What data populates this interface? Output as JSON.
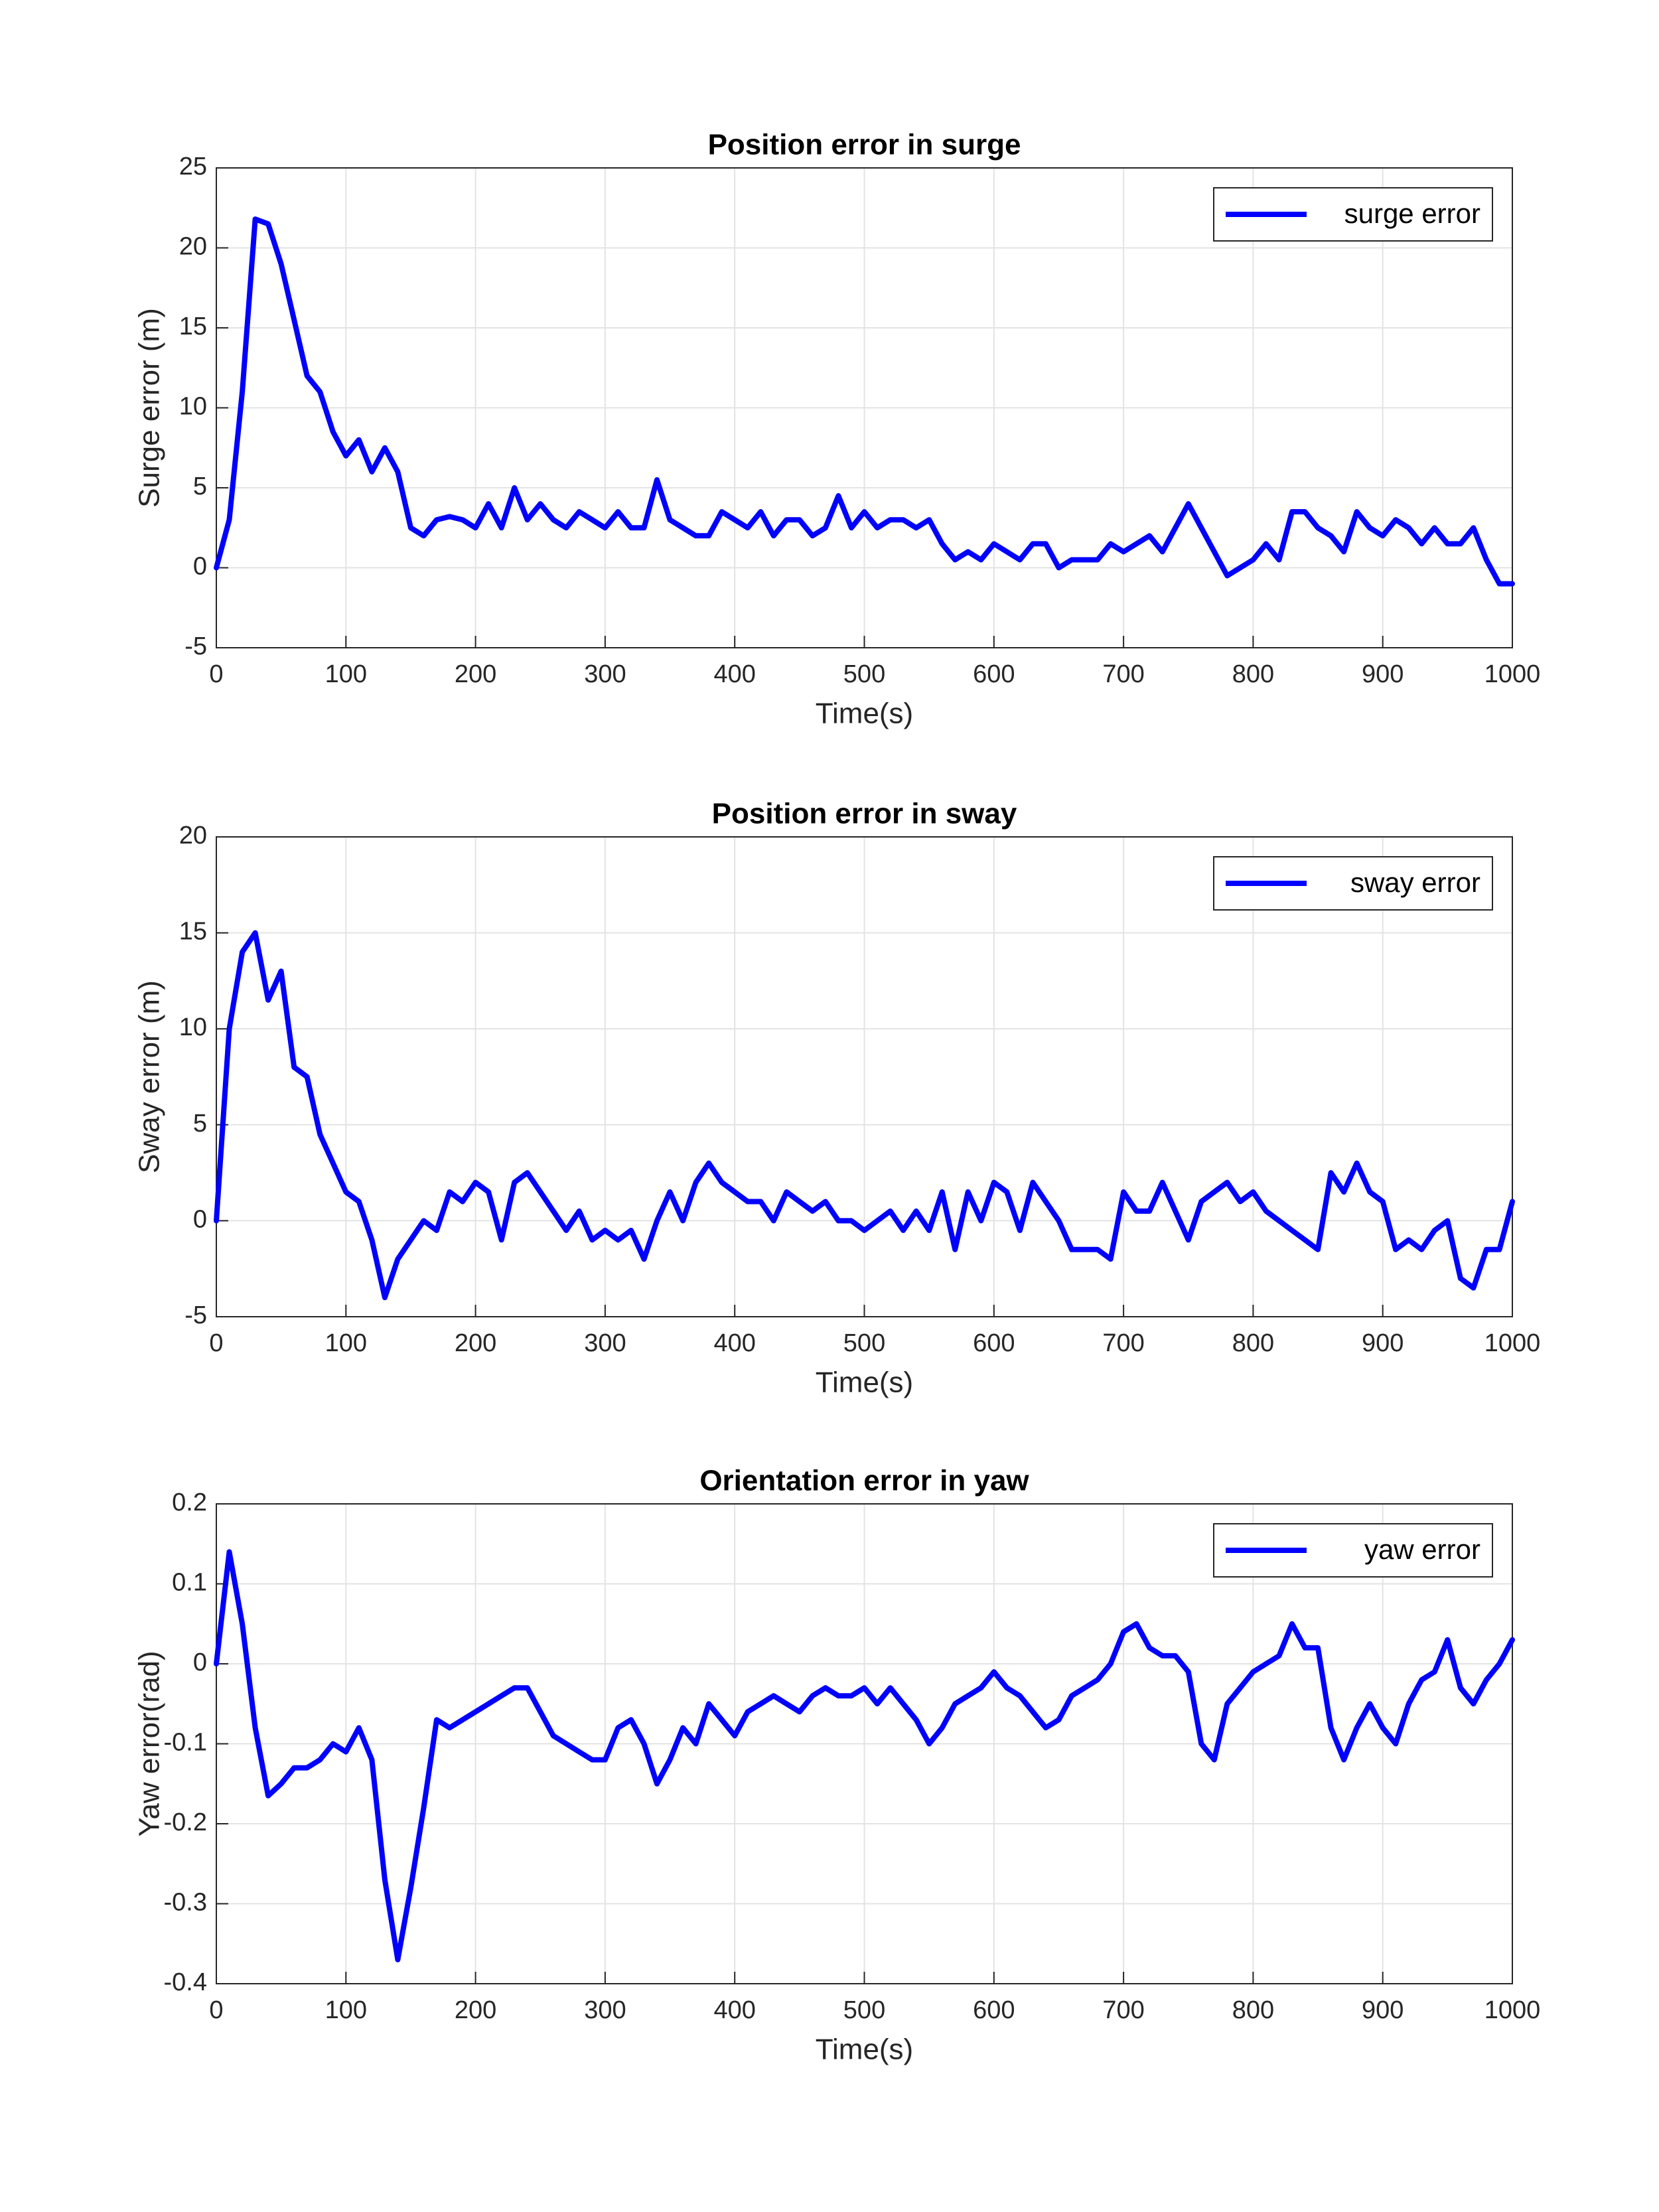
{
  "chart_data": [
    {
      "type": "line",
      "title": "Position error in surge",
      "xlabel": "Time(s)",
      "ylabel": "Surge error (m)",
      "x": [
        0,
        10,
        20,
        30,
        40,
        50,
        60,
        70,
        80,
        90,
        100,
        110,
        120,
        130,
        140,
        150,
        160,
        170,
        180,
        190,
        200,
        210,
        220,
        230,
        240,
        250,
        260,
        270,
        280,
        290,
        300,
        310,
        320,
        330,
        340,
        350,
        360,
        370,
        380,
        390,
        400,
        410,
        420,
        430,
        440,
        450,
        460,
        470,
        480,
        490,
        500,
        510,
        520,
        530,
        540,
        550,
        560,
        570,
        580,
        590,
        600,
        610,
        620,
        630,
        640,
        650,
        660,
        670,
        680,
        690,
        700,
        710,
        720,
        730,
        740,
        750,
        760,
        770,
        780,
        790,
        800,
        810,
        820,
        830,
        840,
        850,
        860,
        870,
        880,
        890,
        900,
        910,
        920,
        930,
        940,
        950,
        960,
        970,
        980,
        990,
        1000
      ],
      "series": [
        {
          "name": "surge error",
          "color": "#0000ff",
          "values": [
            0,
            3,
            11,
            21.8,
            21.5,
            19,
            15.5,
            12,
            11,
            8.5,
            7,
            8,
            6,
            7.5,
            6,
            2.5,
            2,
            3,
            3.2,
            3,
            2.5,
            4,
            2.5,
            5,
            3,
            4,
            3,
            2.5,
            3.5,
            3,
            2.5,
            3.5,
            2.5,
            2.5,
            5.5,
            3,
            2.5,
            2,
            2,
            3.5,
            3,
            2.5,
            3.5,
            2,
            3,
            3,
            2,
            2.5,
            4.5,
            2.5,
            3.5,
            2.5,
            3,
            3,
            2.5,
            3,
            1.5,
            0.5,
            1,
            0.5,
            1.5,
            1,
            0.5,
            1.5,
            1.5,
            0,
            0.5,
            0.5,
            0.5,
            1.5,
            1,
            1.5,
            2,
            1,
            2.5,
            4,
            2.5,
            1,
            -0.5,
            0,
            0.5,
            1.5,
            0.5,
            3.5,
            3.5,
            2.5,
            2,
            1,
            3.5,
            2.5,
            2,
            3,
            2.5,
            1.5,
            2.5,
            1.5,
            1.5,
            2.5,
            0.5,
            -1,
            -1
          ]
        }
      ],
      "xlim": [
        0,
        1000
      ],
      "xticks": [
        0,
        100,
        200,
        300,
        400,
        500,
        600,
        700,
        800,
        900,
        1000
      ],
      "ylim": [
        -5,
        25
      ],
      "yticks": [
        -5,
        0,
        5,
        10,
        15,
        20,
        25
      ],
      "grid": true,
      "legend": "upper right"
    },
    {
      "type": "line",
      "title": "Position error in sway",
      "xlabel": "Time(s)",
      "ylabel": "Sway error (m)",
      "x": [
        0,
        10,
        20,
        30,
        40,
        50,
        60,
        70,
        80,
        90,
        100,
        110,
        120,
        130,
        140,
        150,
        160,
        170,
        180,
        190,
        200,
        210,
        220,
        230,
        240,
        250,
        260,
        270,
        280,
        290,
        300,
        310,
        320,
        330,
        340,
        350,
        360,
        370,
        380,
        390,
        400,
        410,
        420,
        430,
        440,
        450,
        460,
        470,
        480,
        490,
        500,
        510,
        520,
        530,
        540,
        550,
        560,
        570,
        580,
        590,
        600,
        610,
        620,
        630,
        640,
        650,
        660,
        670,
        680,
        690,
        700,
        710,
        720,
        730,
        740,
        750,
        760,
        770,
        780,
        790,
        800,
        810,
        820,
        830,
        840,
        850,
        860,
        870,
        880,
        890,
        900,
        910,
        920,
        930,
        940,
        950,
        960,
        970,
        980,
        990,
        1000
      ],
      "series": [
        {
          "name": "sway error",
          "color": "#0000ff",
          "values": [
            0,
            10,
            14,
            15,
            11.5,
            13,
            8,
            7.5,
            4.5,
            3,
            1.5,
            1,
            -1,
            -4,
            -2,
            -1,
            0,
            -0.5,
            1.5,
            1,
            2,
            1.5,
            -1,
            2,
            2.5,
            1.5,
            0.5,
            -0.5,
            0.5,
            -1,
            -0.5,
            -1,
            -0.5,
            -2,
            0,
            1.5,
            0,
            2,
            3,
            2,
            1.5,
            1,
            1,
            0,
            1.5,
            1,
            0.5,
            1,
            0,
            0,
            -0.5,
            0,
            0.5,
            -0.5,
            0.5,
            -0.5,
            1.5,
            -1.5,
            1.5,
            0,
            2,
            1.5,
            -0.5,
            2,
            1,
            0,
            -1.5,
            -1.5,
            -1.5,
            -2,
            1.5,
            0.5,
            0.5,
            2,
            0.5,
            -1,
            1,
            1.5,
            2,
            1,
            1.5,
            0.5,
            0,
            -0.5,
            -1,
            -1.5,
            2.5,
            1.5,
            3,
            1.5,
            1,
            -1.5,
            -1,
            -1.5,
            -0.5,
            0,
            -3,
            -3.5,
            -1.5,
            -1.5,
            1
          ]
        }
      ],
      "xlim": [
        0,
        1000
      ],
      "xticks": [
        0,
        100,
        200,
        300,
        400,
        500,
        600,
        700,
        800,
        900,
        1000
      ],
      "ylim": [
        -5,
        20
      ],
      "yticks": [
        -5,
        0,
        5,
        10,
        15,
        20
      ],
      "grid": true,
      "legend": "upper right"
    },
    {
      "type": "line",
      "title": "Orientation error in yaw",
      "xlabel": "Time(s)",
      "ylabel": "Yaw error(rad)",
      "x": [
        0,
        10,
        20,
        30,
        40,
        50,
        60,
        70,
        80,
        90,
        100,
        110,
        120,
        130,
        140,
        150,
        160,
        170,
        180,
        190,
        200,
        210,
        220,
        230,
        240,
        250,
        260,
        270,
        280,
        290,
        300,
        310,
        320,
        330,
        340,
        350,
        360,
        370,
        380,
        390,
        400,
        410,
        420,
        430,
        440,
        450,
        460,
        470,
        480,
        490,
        500,
        510,
        520,
        530,
        540,
        550,
        560,
        570,
        580,
        590,
        600,
        610,
        620,
        630,
        640,
        650,
        660,
        670,
        680,
        690,
        700,
        710,
        720,
        730,
        740,
        750,
        760,
        770,
        780,
        790,
        800,
        810,
        820,
        830,
        840,
        850,
        860,
        870,
        880,
        890,
        900,
        910,
        920,
        930,
        940,
        950,
        960,
        970,
        980,
        990,
        1000
      ],
      "series": [
        {
          "name": "yaw error",
          "color": "#0000ff",
          "values": [
            0,
            0.14,
            0.05,
            -0.08,
            -0.165,
            -0.15,
            -0.13,
            -0.13,
            -0.12,
            -0.1,
            -0.11,
            -0.08,
            -0.12,
            -0.27,
            -0.37,
            -0.28,
            -0.18,
            -0.07,
            -0.08,
            -0.07,
            -0.06,
            -0.05,
            -0.04,
            -0.03,
            -0.03,
            -0.06,
            -0.09,
            -0.1,
            -0.11,
            -0.12,
            -0.12,
            -0.08,
            -0.07,
            -0.1,
            -0.15,
            -0.12,
            -0.08,
            -0.1,
            -0.05,
            -0.07,
            -0.09,
            -0.06,
            -0.05,
            -0.04,
            -0.05,
            -0.06,
            -0.04,
            -0.03,
            -0.04,
            -0.04,
            -0.03,
            -0.05,
            -0.03,
            -0.05,
            -0.07,
            -0.1,
            -0.08,
            -0.05,
            -0.04,
            -0.03,
            -0.01,
            -0.03,
            -0.04,
            -0.06,
            -0.08,
            -0.07,
            -0.04,
            -0.03,
            -0.02,
            0,
            0.04,
            0.05,
            0.02,
            0.01,
            0.01,
            -0.01,
            -0.1,
            -0.12,
            -0.05,
            -0.03,
            -0.01,
            0,
            0.01,
            0.05,
            0.02,
            0.02,
            -0.08,
            -0.12,
            -0.08,
            -0.05,
            -0.08,
            -0.1,
            -0.05,
            -0.02,
            -0.01,
            0.03,
            -0.03,
            -0.05,
            -0.02,
            0,
            0.03
          ]
        }
      ],
      "xlim": [
        0,
        1000
      ],
      "xticks": [
        0,
        100,
        200,
        300,
        400,
        500,
        600,
        700,
        800,
        900,
        1000
      ],
      "ylim": [
        -0.4,
        0.2
      ],
      "yticks": [
        -0.4,
        -0.3,
        -0.2,
        -0.1,
        0,
        0.1,
        0.2
      ],
      "grid": true,
      "legend": "upper right"
    }
  ]
}
